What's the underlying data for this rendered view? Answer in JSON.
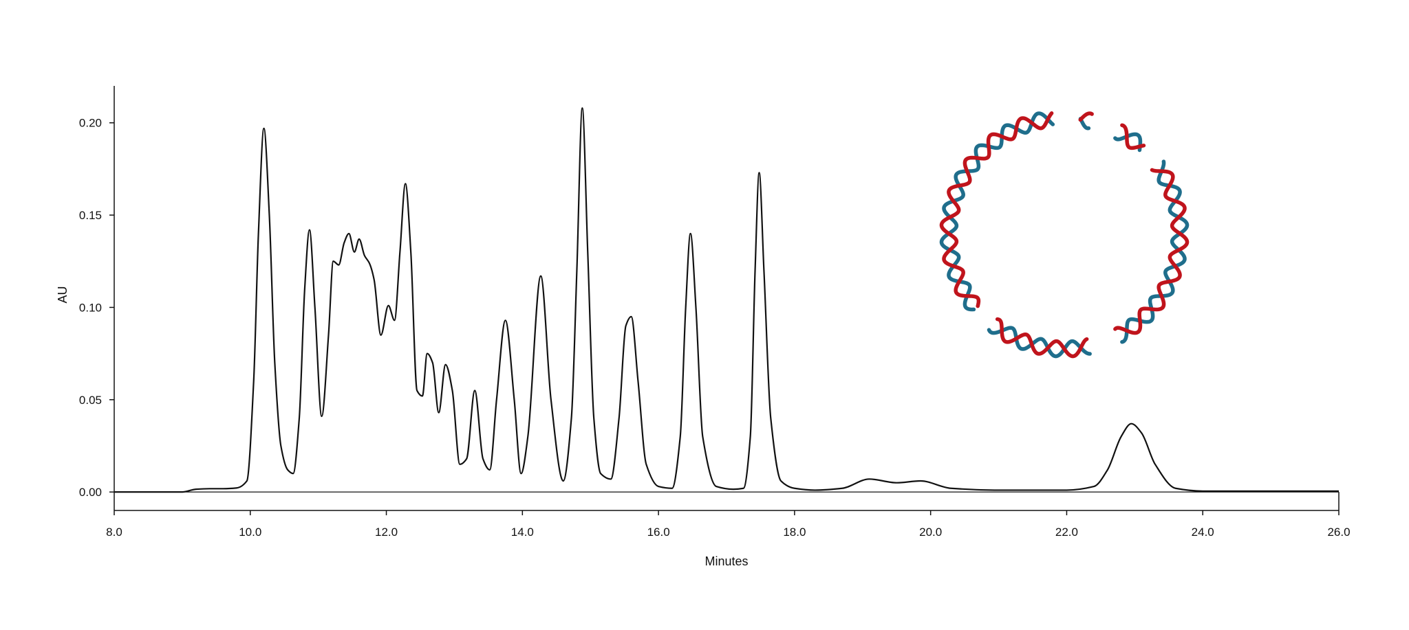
{
  "chart_data": {
    "type": "line",
    "title": "",
    "xlabel": "Minutes",
    "ylabel": "AU",
    "xlim": [
      8.0,
      26.0
    ],
    "ylim": [
      -0.01,
      0.22
    ],
    "x_ticks": [
      8.0,
      10.0,
      12.0,
      14.0,
      16.0,
      18.0,
      20.0,
      22.0,
      24.0,
      26.0
    ],
    "x_tick_labels": [
      "8.0",
      "10.0",
      "12.0",
      "14.0",
      "16.0",
      "18.0",
      "20.0",
      "22.0",
      "24.0",
      "26.0"
    ],
    "y_ticks": [
      0.0,
      0.05,
      0.1,
      0.15,
      0.2
    ],
    "y_tick_labels": [
      "0.00",
      "0.05",
      "0.10",
      "0.15",
      "0.20"
    ],
    "grid": false,
    "line_color": "#111111",
    "series": [
      {
        "x": [
          8.0,
          9.0,
          9.2,
          9.4,
          9.6,
          9.8,
          9.95,
          10.05,
          10.12,
          10.2,
          10.28,
          10.36,
          10.45,
          10.55,
          10.63,
          10.72,
          10.8,
          10.87,
          10.95,
          11.05,
          11.15,
          11.22,
          11.3,
          11.38,
          11.45,
          11.53,
          11.6,
          11.68,
          11.75,
          11.82,
          11.92,
          12.03,
          12.12,
          12.2,
          12.28,
          12.36,
          12.45,
          12.53,
          12.6,
          12.68,
          12.77,
          12.87,
          12.97,
          13.08,
          13.18,
          13.3,
          13.42,
          13.52,
          13.62,
          13.75,
          13.88,
          13.98,
          14.08,
          14.27,
          14.42,
          14.6,
          14.72,
          14.8,
          14.88,
          14.96,
          15.05,
          15.15,
          15.3,
          15.42,
          15.52,
          15.6,
          15.7,
          15.82,
          16.0,
          16.2,
          16.32,
          16.4,
          16.47,
          16.55,
          16.65,
          16.85,
          17.1,
          17.25,
          17.35,
          17.42,
          17.48,
          17.55,
          17.65,
          17.8,
          18.0,
          18.3,
          18.7,
          19.1,
          19.5,
          19.85,
          20.3,
          21.0,
          22.0,
          22.4,
          22.6,
          22.8,
          22.95,
          23.1,
          23.3,
          23.6,
          24.0,
          26.0
        ],
        "y": [
          0.0,
          0.0,
          0.0015,
          0.0018,
          0.0018,
          0.0022,
          0.006,
          0.06,
          0.14,
          0.197,
          0.15,
          0.07,
          0.025,
          0.012,
          0.01,
          0.04,
          0.11,
          0.142,
          0.1,
          0.041,
          0.085,
          0.125,
          0.123,
          0.135,
          0.14,
          0.13,
          0.137,
          0.128,
          0.124,
          0.115,
          0.085,
          0.101,
          0.093,
          0.13,
          0.167,
          0.13,
          0.055,
          0.052,
          0.075,
          0.07,
          0.043,
          0.069,
          0.055,
          0.015,
          0.018,
          0.055,
          0.018,
          0.012,
          0.05,
          0.093,
          0.05,
          0.01,
          0.03,
          0.117,
          0.05,
          0.006,
          0.04,
          0.12,
          0.208,
          0.13,
          0.04,
          0.01,
          0.007,
          0.04,
          0.09,
          0.095,
          0.06,
          0.015,
          0.003,
          0.002,
          0.03,
          0.1,
          0.14,
          0.1,
          0.03,
          0.003,
          0.0015,
          0.002,
          0.03,
          0.12,
          0.173,
          0.12,
          0.04,
          0.006,
          0.002,
          0.001,
          0.002,
          0.007,
          0.005,
          0.006,
          0.002,
          0.001,
          0.001,
          0.003,
          0.012,
          0.03,
          0.037,
          0.032,
          0.015,
          0.002,
          0.0005,
          0.0005
        ]
      }
    ]
  },
  "inset": {
    "colors": {
      "strand_a": "#c0141c",
      "strand_b": "#1f6e8c"
    },
    "icon": "circular-dna-plasmid-icon"
  }
}
